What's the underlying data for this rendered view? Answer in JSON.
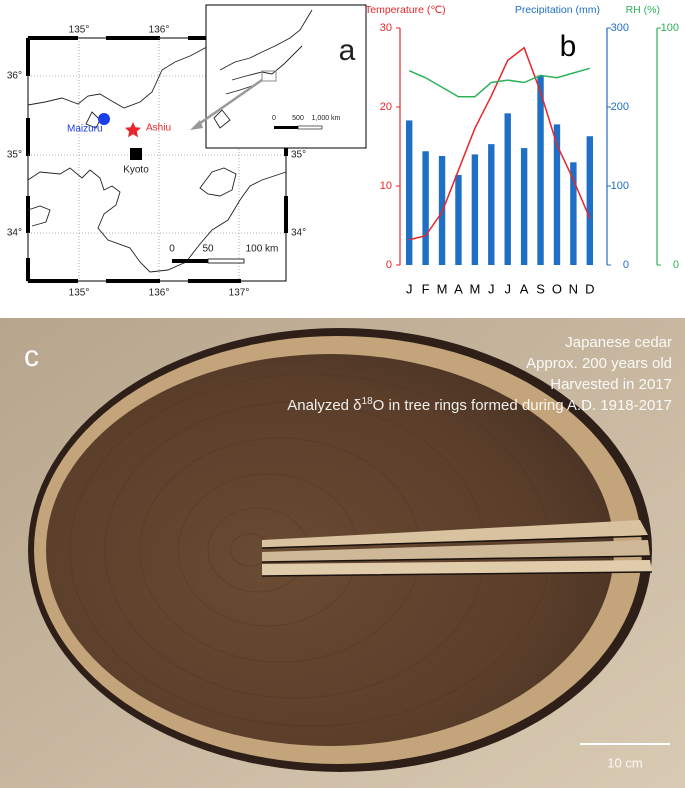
{
  "map": {
    "panel_label": "a",
    "top_lon_labels": [
      "135°",
      "136°"
    ],
    "bottom_lon_labels": [
      "135°",
      "136°",
      "137°"
    ],
    "left_lat_labels": [
      "36°",
      "35°",
      "34°"
    ],
    "right_lat_labels": [
      "35°",
      "34°"
    ],
    "sites": [
      "Maizuru",
      "Ashiu",
      "Kyoto"
    ],
    "scale_labels": [
      "0",
      "50",
      "100 km"
    ],
    "inset_scale_labels": [
      "0",
      "500",
      "1,000 km"
    ]
  },
  "chart_data": {
    "type": "combo",
    "panel_label": "b",
    "categories": [
      "J",
      "F",
      "M",
      "A",
      "M",
      "J",
      "J",
      "A",
      "S",
      "O",
      "N",
      "D"
    ],
    "ylim": [
      0,
      30
    ],
    "yticks": [
      0,
      10,
      20,
      30
    ],
    "y2lim": [
      0,
      300
    ],
    "y2ticks": [
      0,
      100,
      200,
      300
    ],
    "y3lim": [
      0,
      100
    ],
    "y3ticks": [
      0,
      100
    ],
    "series": [
      {
        "name": "Precipitation (mm)",
        "type": "bar",
        "axis": "y2",
        "color": "#1f6fc5",
        "values": [
          183,
          144,
          138,
          114,
          140,
          153,
          192,
          148,
          240,
          178,
          130,
          163
        ]
      },
      {
        "name": "Temperature (℃)",
        "type": "line",
        "color": "#e8262b",
        "values": [
          3.2,
          3.7,
          6.7,
          12.0,
          17.3,
          21.4,
          25.9,
          27.5,
          21.9,
          15.2,
          10.8,
          5.9
        ]
      },
      {
        "name": "RH (%)",
        "type": "line",
        "axis": "y3",
        "color": "#2db25a",
        "values": [
          82,
          79,
          75,
          71,
          71,
          77,
          78,
          77,
          80,
          79,
          81,
          83
        ]
      }
    ]
  },
  "photo": {
    "panel_label": "c",
    "caption_lines": [
      "Japanese cedar",
      "Approx. 200 years old",
      "Harvested in 2017"
    ],
    "analysis_line": [
      "Analyzed  δ",
      "18",
      "O in tree rings formed  during A.D. 1918-2017"
    ],
    "scale_label": "10 cm"
  }
}
